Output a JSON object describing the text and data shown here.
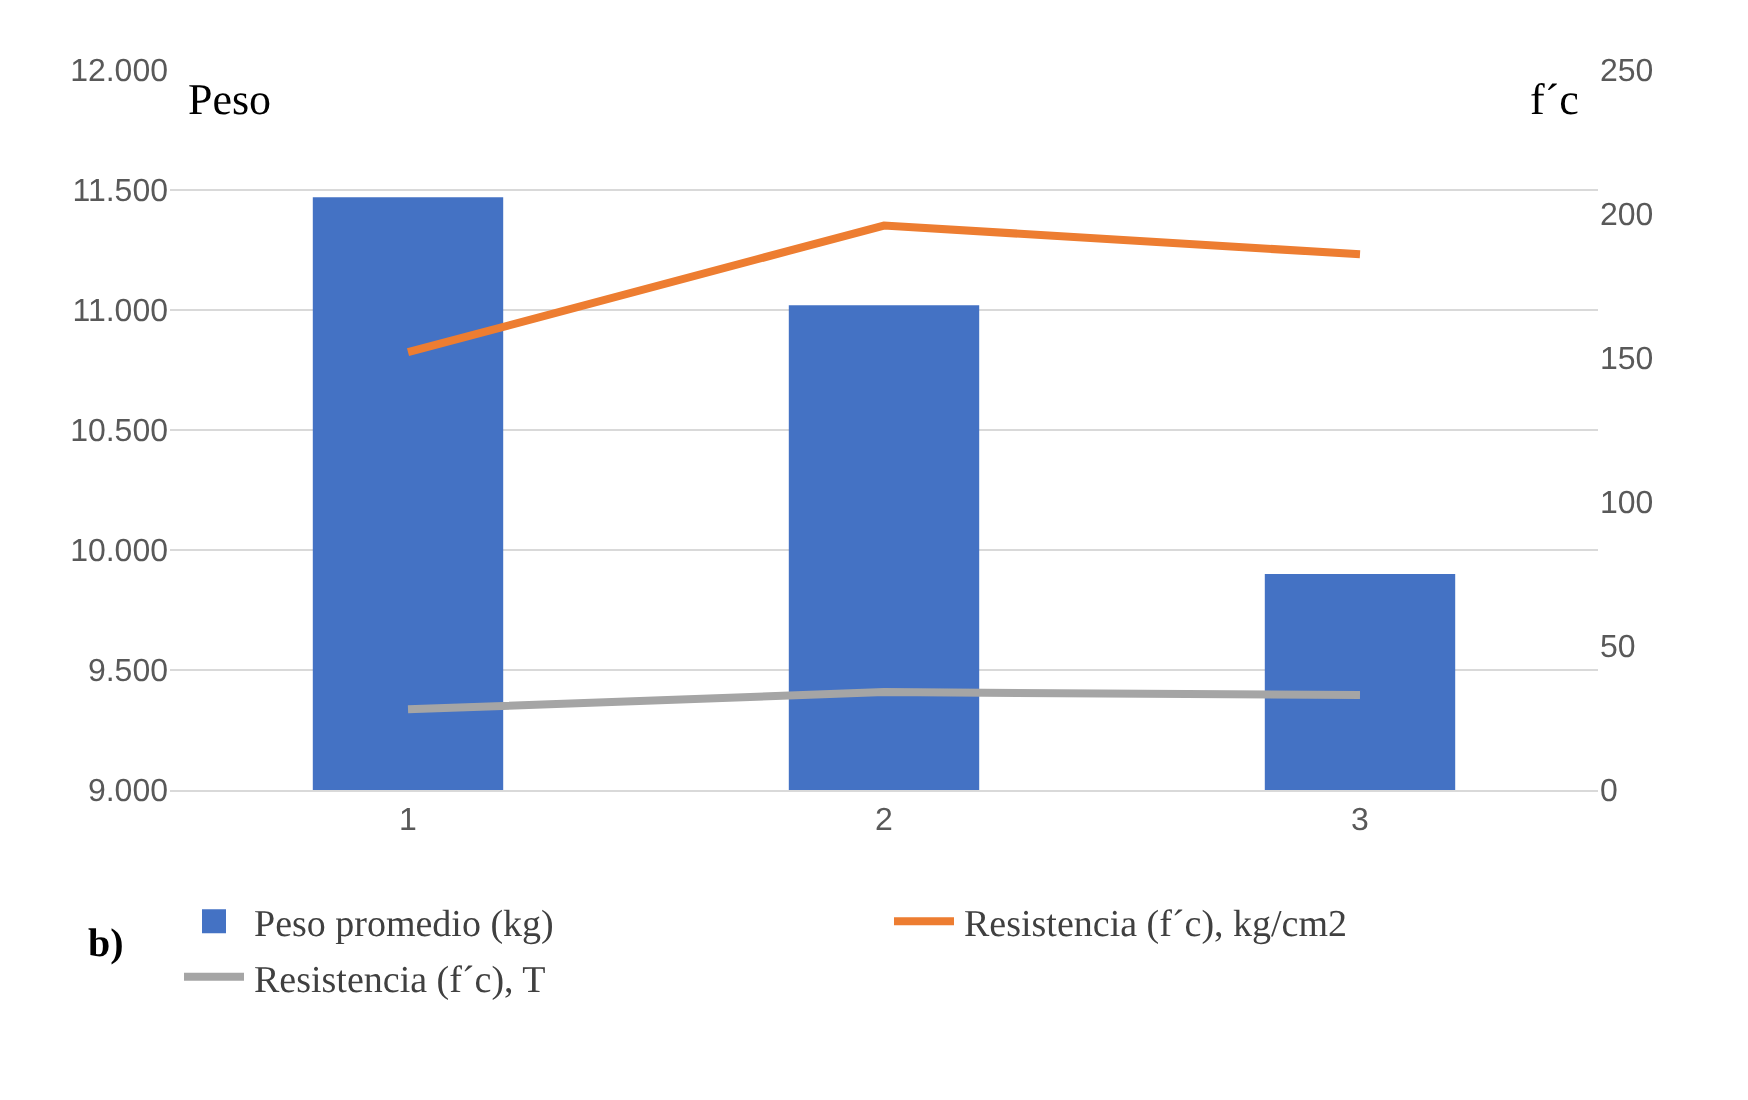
{
  "chart_data": {
    "type": "bar",
    "categories": [
      "1",
      "2",
      "3"
    ],
    "ylabel": "Peso",
    "y2label": "f´c",
    "series": [
      {
        "name": "Peso promedio (kg)",
        "color": "#4472c4",
        "values": [
          11470,
          11020,
          9900
        ]
      },
      {
        "name": "Resistencia (f´c), kg/cm2",
        "type": "line",
        "axis": "y2",
        "color": "#ed7d31",
        "values": [
          152,
          196,
          186
        ]
      },
      {
        "name": "Resistencia (f´c), T",
        "type": "line",
        "axis": "y2",
        "color": "#a5a5a5",
        "values": [
          28,
          34,
          33
        ]
      }
    ],
    "ylim": [
      9000,
      12000
    ],
    "yticks": [
      {
        "value": 9000,
        "label": "9.000"
      },
      {
        "value": 9500,
        "label": "9.500"
      },
      {
        "value": 10000,
        "label": "10.000"
      },
      {
        "value": 10500,
        "label": "10.500"
      },
      {
        "value": 11000,
        "label": "11.000"
      },
      {
        "value": 11500,
        "label": "11.500"
      },
      {
        "value": 12000,
        "label": "12.000"
      }
    ],
    "y2lim": [
      0,
      250
    ],
    "y2ticks": [
      0,
      50,
      100,
      150,
      200,
      250
    ],
    "grid": "y",
    "legend": "bottom",
    "marker": "none",
    "annotations": [
      "b)"
    ]
  }
}
